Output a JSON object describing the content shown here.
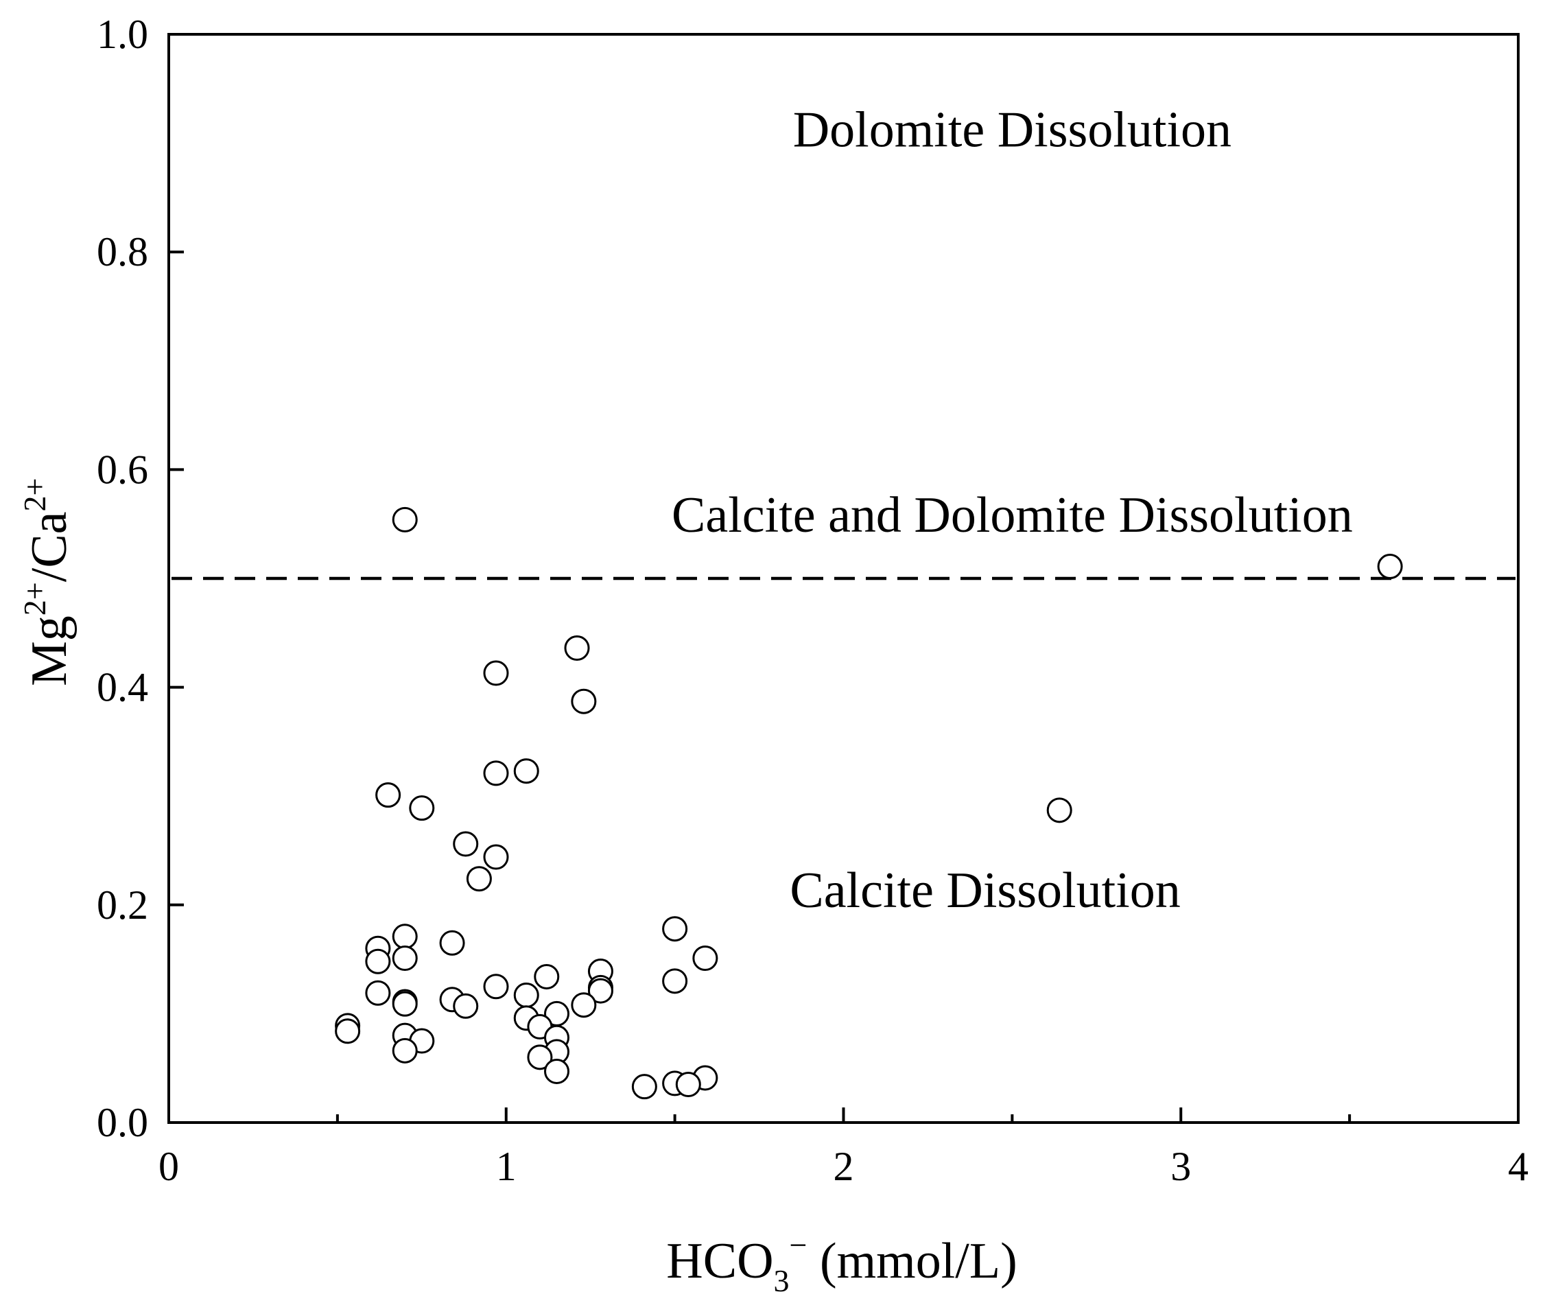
{
  "chart_data": {
    "type": "scatter",
    "title": "",
    "xlabel": {
      "base": "HCO",
      "sub": "3",
      "sup": "−",
      "unit": " (mmol/L)"
    },
    "ylabel": {
      "p1": "Mg",
      "s1": "2+",
      "p2": "/Ca",
      "s2": "2+"
    },
    "xlim": [
      0,
      4
    ],
    "ylim": [
      0,
      1.0
    ],
    "x_ticks": [
      0,
      1,
      2,
      3,
      4
    ],
    "x_tick_labels": [
      "0",
      "1",
      "2",
      "3",
      "4"
    ],
    "x_minor_ticks": [
      0.5,
      1.5,
      2.5,
      3.5
    ],
    "y_ticks": [
      0,
      0.2,
      0.4,
      0.6,
      0.8,
      1.0
    ],
    "y_tick_labels": [
      "0.0",
      "0.2",
      "0.4",
      "0.6",
      "0.8",
      "1.0"
    ],
    "reference_line": {
      "y": 0.5,
      "style": "dashed"
    },
    "region_labels": [
      {
        "text": "Dolomite Dissolution",
        "x": 2.5,
        "y": 0.897
      },
      {
        "text": "Calcite and Dolomite Dissolution",
        "x": 2.5,
        "y": 0.543
      },
      {
        "text": "Calcite Dissolution",
        "x": 2.42,
        "y": 0.198
      }
    ],
    "marker": "open-circle",
    "points": [
      [
        0.7,
        0.554
      ],
      [
        3.62,
        0.511
      ],
      [
        1.21,
        0.436
      ],
      [
        0.97,
        0.413
      ],
      [
        1.23,
        0.387
      ],
      [
        0.97,
        0.321
      ],
      [
        1.06,
        0.323
      ],
      [
        0.65,
        0.301
      ],
      [
        0.75,
        0.289
      ],
      [
        2.64,
        0.287
      ],
      [
        0.88,
        0.256
      ],
      [
        0.97,
        0.244
      ],
      [
        0.92,
        0.224
      ],
      [
        1.5,
        0.178
      ],
      [
        0.7,
        0.171
      ],
      [
        0.84,
        0.165
      ],
      [
        0.62,
        0.16
      ],
      [
        0.62,
        0.148
      ],
      [
        0.7,
        0.151
      ],
      [
        1.59,
        0.151
      ],
      [
        1.28,
        0.139
      ],
      [
        1.12,
        0.134
      ],
      [
        1.5,
        0.13
      ],
      [
        0.97,
        0.125
      ],
      [
        1.28,
        0.124
      ],
      [
        1.28,
        0.121
      ],
      [
        0.62,
        0.119
      ],
      [
        1.06,
        0.117
      ],
      [
        0.84,
        0.113
      ],
      [
        0.7,
        0.111
      ],
      [
        0.7,
        0.109
      ],
      [
        1.23,
        0.108
      ],
      [
        0.88,
        0.107
      ],
      [
        1.15,
        0.1
      ],
      [
        1.06,
        0.096
      ],
      [
        0.53,
        0.089
      ],
      [
        0.53,
        0.084
      ],
      [
        1.1,
        0.088
      ],
      [
        0.7,
        0.08
      ],
      [
        1.15,
        0.078
      ],
      [
        0.75,
        0.075
      ],
      [
        0.7,
        0.066
      ],
      [
        1.15,
        0.065
      ],
      [
        1.1,
        0.06
      ],
      [
        1.15,
        0.047
      ],
      [
        1.59,
        0.041
      ],
      [
        1.5,
        0.036
      ],
      [
        1.54,
        0.035
      ],
      [
        1.41,
        0.033
      ]
    ]
  }
}
